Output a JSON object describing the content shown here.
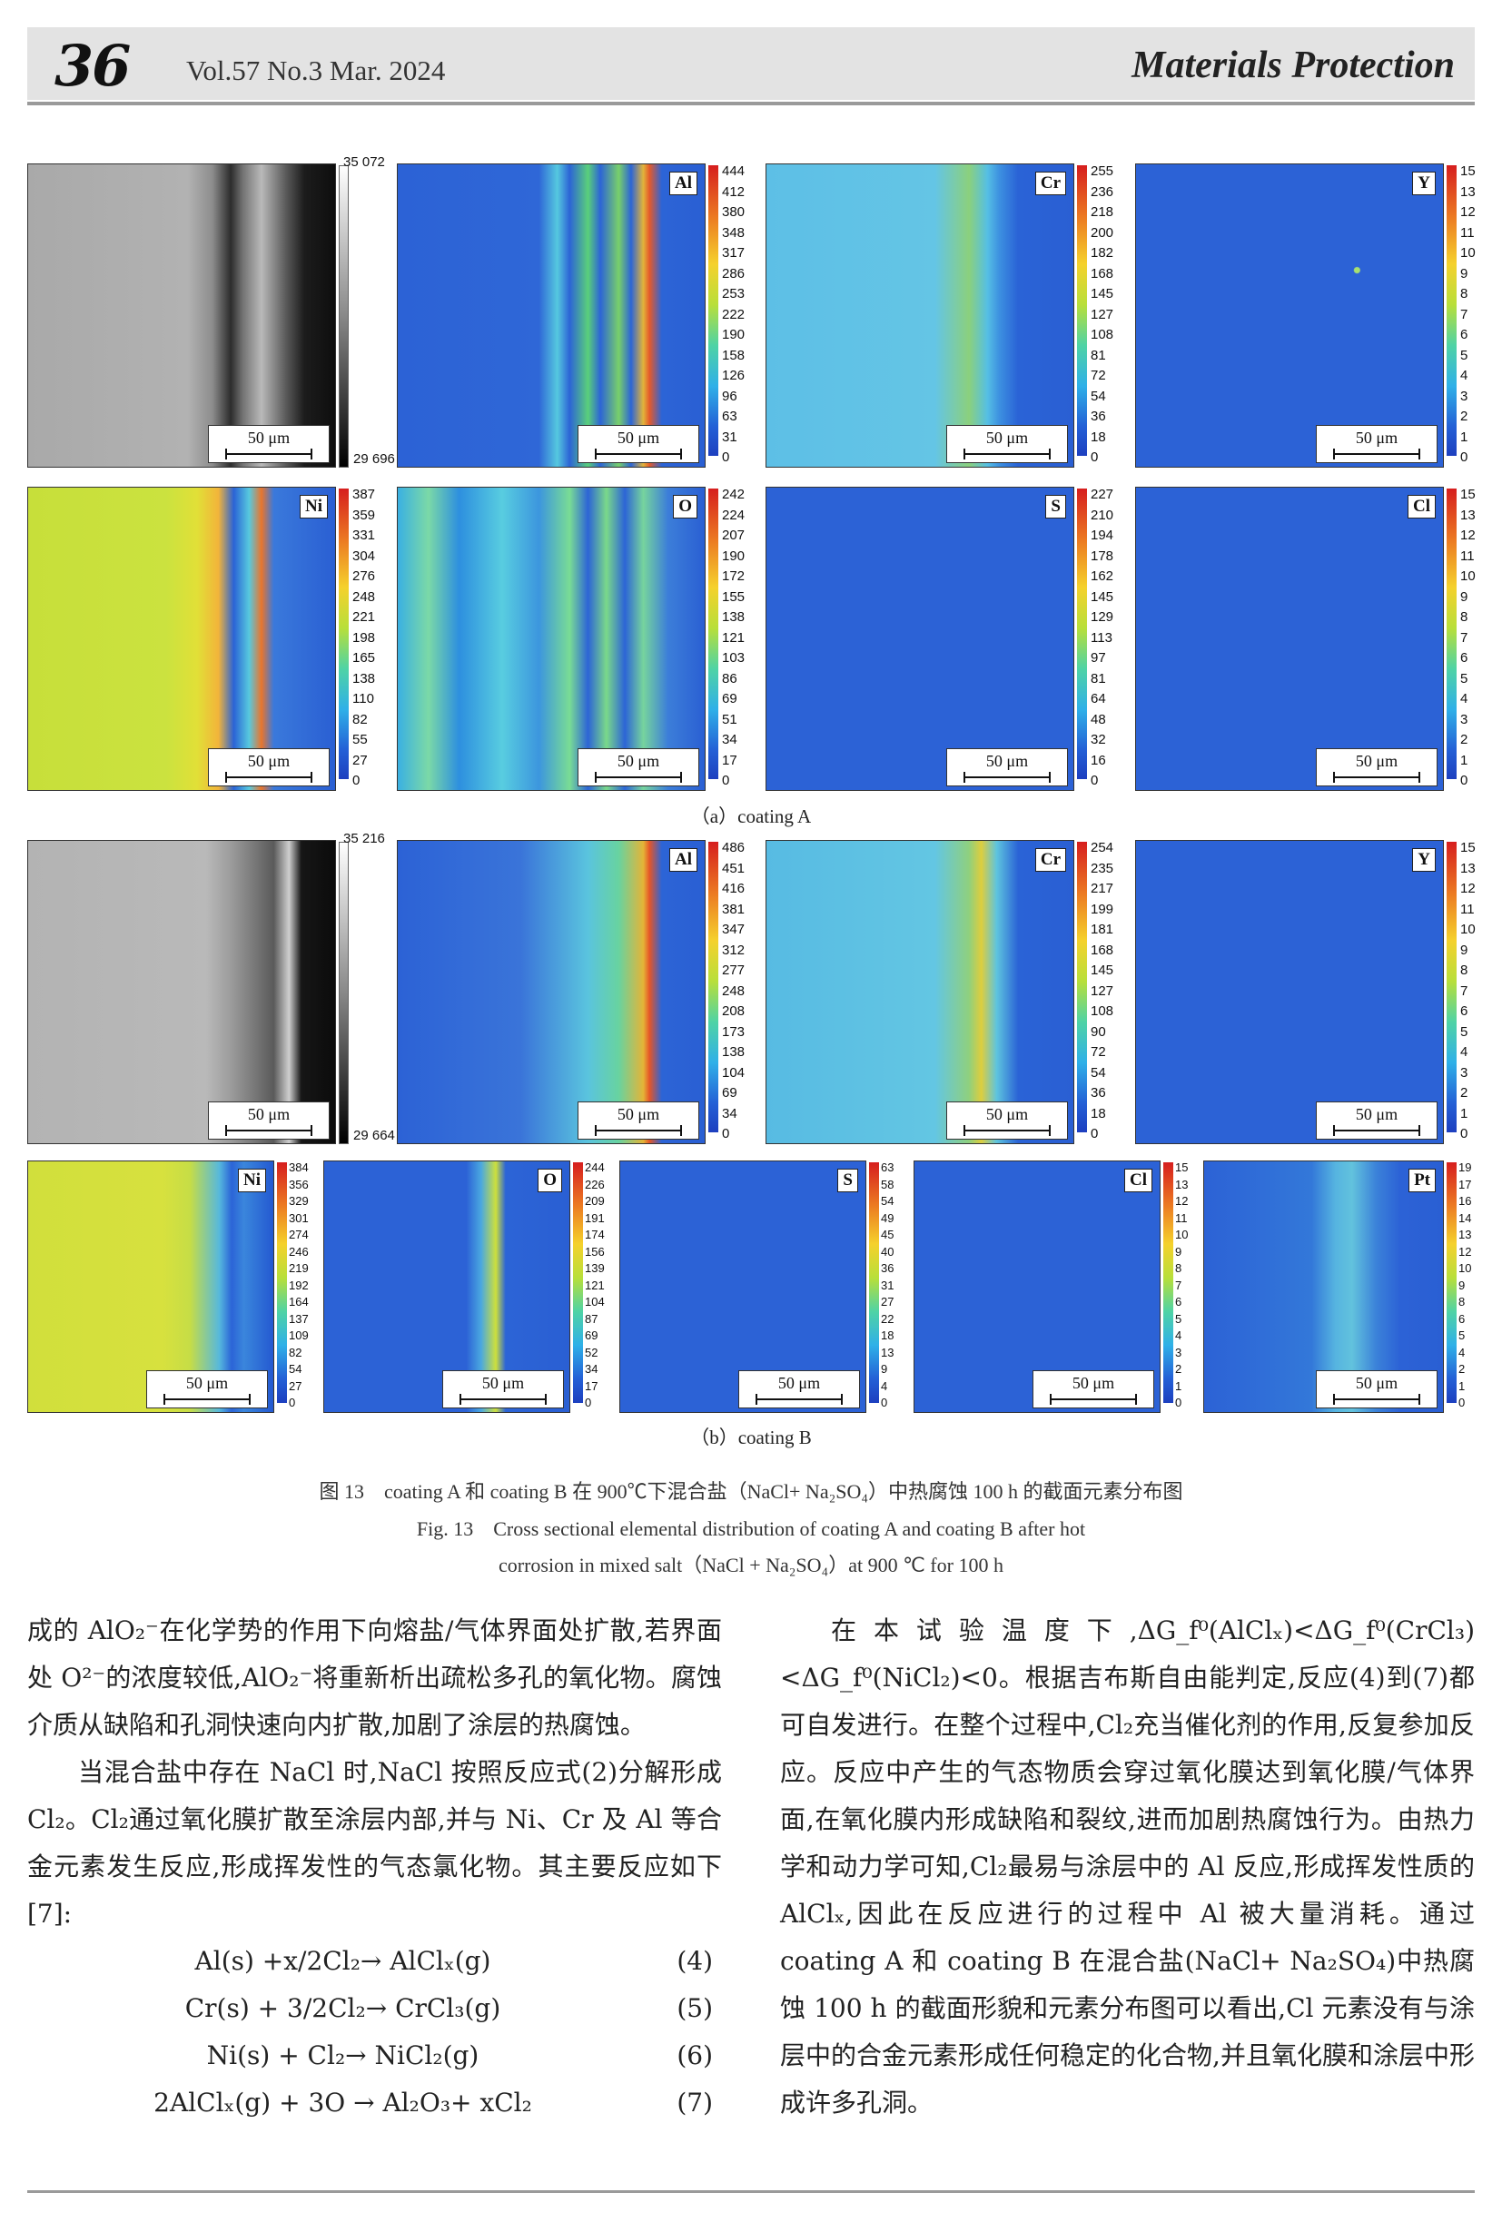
{
  "header": {
    "page_number": "36",
    "volume_info": "Vol.57 No.3 Mar. 2024",
    "journal": "Materials Protection"
  },
  "figure": {
    "scale_label": "50 μm",
    "panel_a": {
      "sem": {
        "max": "35 072",
        "min": "29 696"
      },
      "maps": [
        {
          "element": "Al",
          "ticks": [
            "444",
            "412",
            "380",
            "348",
            "317",
            "286",
            "253",
            "222",
            "190",
            "158",
            "126",
            "96",
            "63",
            "31",
            "0"
          ]
        },
        {
          "element": "Cr",
          "ticks": [
            "255",
            "236",
            "218",
            "200",
            "182",
            "168",
            "145",
            "127",
            "108",
            "81",
            "72",
            "54",
            "36",
            "18",
            "0"
          ]
        },
        {
          "element": "Y",
          "ticks": [
            "15",
            "13",
            "12",
            "11",
            "10",
            "9",
            "8",
            "7",
            "6",
            "5",
            "4",
            "3",
            "2",
            "1",
            "0"
          ]
        },
        {
          "element": "Ni",
          "ticks": [
            "387",
            "359",
            "331",
            "304",
            "276",
            "248",
            "221",
            "198",
            "165",
            "138",
            "110",
            "82",
            "55",
            "27",
            "0"
          ]
        },
        {
          "element": "O",
          "ticks": [
            "242",
            "224",
            "207",
            "190",
            "172",
            "155",
            "138",
            "121",
            "103",
            "86",
            "69",
            "51",
            "34",
            "17",
            "0"
          ]
        },
        {
          "element": "S",
          "ticks": [
            "227",
            "210",
            "194",
            "178",
            "162",
            "145",
            "129",
            "113",
            "97",
            "81",
            "64",
            "48",
            "32",
            "16",
            "0"
          ]
        },
        {
          "element": "Cl",
          "ticks": [
            "15",
            "13",
            "12",
            "11",
            "10",
            "9",
            "8",
            "7",
            "6",
            "5",
            "4",
            "3",
            "2",
            "1",
            "0"
          ]
        }
      ],
      "caption": "（a）coating A"
    },
    "panel_b": {
      "sem": {
        "max": "35 216",
        "min": "29 664"
      },
      "maps": [
        {
          "element": "Al",
          "ticks": [
            "486",
            "451",
            "416",
            "381",
            "347",
            "312",
            "277",
            "248",
            "208",
            "173",
            "138",
            "104",
            "69",
            "34",
            "0"
          ]
        },
        {
          "element": "Cr",
          "ticks": [
            "254",
            "235",
            "217",
            "199",
            "181",
            "168",
            "145",
            "127",
            "108",
            "90",
            "72",
            "54",
            "36",
            "18",
            "0"
          ]
        },
        {
          "element": "Y",
          "ticks": [
            "15",
            "13",
            "12",
            "11",
            "10",
            "9",
            "8",
            "7",
            "6",
            "5",
            "4",
            "3",
            "2",
            "1",
            "0"
          ]
        },
        {
          "element": "Ni",
          "ticks": [
            "384",
            "356",
            "329",
            "301",
            "274",
            "246",
            "219",
            "192",
            "164",
            "137",
            "109",
            "82",
            "54",
            "27",
            "0"
          ]
        },
        {
          "element": "O",
          "ticks": [
            "244",
            "226",
            "209",
            "191",
            "174",
            "156",
            "139",
            "121",
            "104",
            "87",
            "69",
            "52",
            "34",
            "17",
            "0"
          ]
        },
        {
          "element": "S",
          "ticks": [
            "63",
            "58",
            "54",
            "49",
            "45",
            "40",
            "36",
            "31",
            "27",
            "22",
            "18",
            "13",
            "9",
            "4",
            "0"
          ]
        },
        {
          "element": "Cl",
          "ticks": [
            "15",
            "13",
            "12",
            "11",
            "10",
            "9",
            "8",
            "7",
            "6",
            "5",
            "4",
            "3",
            "2",
            "1",
            "0"
          ]
        },
        {
          "element": "Pt",
          "ticks": [
            "19",
            "17",
            "16",
            "14",
            "13",
            "12",
            "10",
            "9",
            "8",
            "6",
            "5",
            "4",
            "2",
            "1",
            "0"
          ]
        }
      ],
      "caption": "（b）coating B"
    },
    "caption_cn": "图 13　coating A 和 coating B 在 900℃下混合盐（NaCl+ Na₂SO₄）中热腐蚀 100 h 的截面元素分布图",
    "caption_en_1": "Fig. 13　Cross sectional elemental distribution of coating A and coating B after hot",
    "caption_en_2": "corrosion in mixed salt（NaCl + Na₂SO₄）at 900 ℃ for 100 h"
  },
  "body": {
    "left": {
      "p1": "成的 AlO₂⁻在化学势的作用下向熔盐/气体界面处扩散,若界面处 O²⁻的浓度较低,AlO₂⁻将重新析出疏松多孔的氧化物。腐蚀介质从缺陷和孔洞快速向内扩散,加剧了涂层的热腐蚀。",
      "p2": "当混合盐中存在 NaCl 时,NaCl 按照反应式(2)分解形成 Cl₂。Cl₂通过氧化膜扩散至涂层内部,并与 Ni、Cr 及 Al 等合金元素发生反应,形成挥发性的气态氯化物。其主要反应如下[7]:",
      "equations": [
        {
          "formula": "Al(s) +x/2Cl₂→ AlClₓ(g)",
          "number": "(4)"
        },
        {
          "formula": "Cr(s) + 3/2Cl₂→ CrCl₃(g)",
          "number": "(5)"
        },
        {
          "formula": "Ni(s) + Cl₂→ NiCl₂(g)",
          "number": "(6)"
        },
        {
          "formula": "2AlClₓ(g) + 3O → Al₂O₃+ xCl₂",
          "number": "(7)"
        }
      ]
    },
    "right": {
      "p1": "在本试验温度下,ΔG_f⁰(AlClₓ)<ΔG_f⁰(CrCl₃)<ΔG_f⁰(NiCl₂)<0。根据吉布斯自由能判定,反应(4)到(7)都可自发进行。在整个过程中,Cl₂充当催化剂的作用,反复参加反应。反应中产生的气态物质会穿过氧化膜达到氧化膜/气体界面,在氧化膜内形成缺陷和裂纹,进而加剧热腐蚀行为。由热力学和动力学可知,Cl₂最易与涂层中的 Al 反应,形成挥发性质的 AlClₓ,因此在反应进行的过程中 Al 被大量消耗。通过 coating A 和 coating B 在混合盐(NaCl+ Na₂SO₄)中热腐蚀 100 h 的截面形貌和元素分布图可以看出,Cl 元素没有与涂层中的合金元素形成任何稳定的化合物,并且氧化膜和涂层中形成许多孔洞。"
    }
  }
}
